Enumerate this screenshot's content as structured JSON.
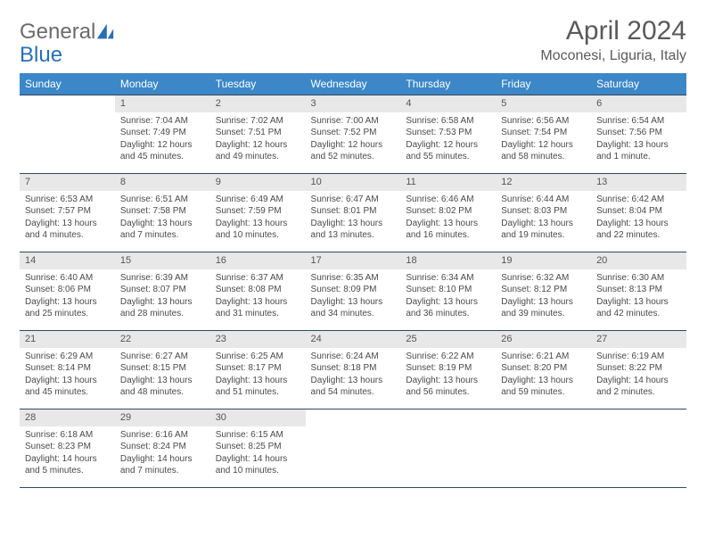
{
  "logo": {
    "part1": "General",
    "part2": "Blue"
  },
  "title": "April 2024",
  "location": "Moconesi, Liguria, Italy",
  "weekdays": [
    "Sunday",
    "Monday",
    "Tuesday",
    "Wednesday",
    "Thursday",
    "Friday",
    "Saturday"
  ],
  "colors": {
    "header_bg": "#3b87c8",
    "header_text": "#ffffff",
    "daynum_bg": "#e8e8e8",
    "border": "#34495e",
    "logo_blue": "#2a6fb5",
    "logo_gray": "#6b6b6b"
  },
  "grid": [
    [
      {
        "n": "",
        "empty": true
      },
      {
        "n": "1",
        "sr": "Sunrise: 7:04 AM",
        "ss": "Sunset: 7:49 PM",
        "dl1": "Daylight: 12 hours",
        "dl2": "and 45 minutes."
      },
      {
        "n": "2",
        "sr": "Sunrise: 7:02 AM",
        "ss": "Sunset: 7:51 PM",
        "dl1": "Daylight: 12 hours",
        "dl2": "and 49 minutes."
      },
      {
        "n": "3",
        "sr": "Sunrise: 7:00 AM",
        "ss": "Sunset: 7:52 PM",
        "dl1": "Daylight: 12 hours",
        "dl2": "and 52 minutes."
      },
      {
        "n": "4",
        "sr": "Sunrise: 6:58 AM",
        "ss": "Sunset: 7:53 PM",
        "dl1": "Daylight: 12 hours",
        "dl2": "and 55 minutes."
      },
      {
        "n": "5",
        "sr": "Sunrise: 6:56 AM",
        "ss": "Sunset: 7:54 PM",
        "dl1": "Daylight: 12 hours",
        "dl2": "and 58 minutes."
      },
      {
        "n": "6",
        "sr": "Sunrise: 6:54 AM",
        "ss": "Sunset: 7:56 PM",
        "dl1": "Daylight: 13 hours",
        "dl2": "and 1 minute."
      }
    ],
    [
      {
        "n": "7",
        "sr": "Sunrise: 6:53 AM",
        "ss": "Sunset: 7:57 PM",
        "dl1": "Daylight: 13 hours",
        "dl2": "and 4 minutes."
      },
      {
        "n": "8",
        "sr": "Sunrise: 6:51 AM",
        "ss": "Sunset: 7:58 PM",
        "dl1": "Daylight: 13 hours",
        "dl2": "and 7 minutes."
      },
      {
        "n": "9",
        "sr": "Sunrise: 6:49 AM",
        "ss": "Sunset: 7:59 PM",
        "dl1": "Daylight: 13 hours",
        "dl2": "and 10 minutes."
      },
      {
        "n": "10",
        "sr": "Sunrise: 6:47 AM",
        "ss": "Sunset: 8:01 PM",
        "dl1": "Daylight: 13 hours",
        "dl2": "and 13 minutes."
      },
      {
        "n": "11",
        "sr": "Sunrise: 6:46 AM",
        "ss": "Sunset: 8:02 PM",
        "dl1": "Daylight: 13 hours",
        "dl2": "and 16 minutes."
      },
      {
        "n": "12",
        "sr": "Sunrise: 6:44 AM",
        "ss": "Sunset: 8:03 PM",
        "dl1": "Daylight: 13 hours",
        "dl2": "and 19 minutes."
      },
      {
        "n": "13",
        "sr": "Sunrise: 6:42 AM",
        "ss": "Sunset: 8:04 PM",
        "dl1": "Daylight: 13 hours",
        "dl2": "and 22 minutes."
      }
    ],
    [
      {
        "n": "14",
        "sr": "Sunrise: 6:40 AM",
        "ss": "Sunset: 8:06 PM",
        "dl1": "Daylight: 13 hours",
        "dl2": "and 25 minutes."
      },
      {
        "n": "15",
        "sr": "Sunrise: 6:39 AM",
        "ss": "Sunset: 8:07 PM",
        "dl1": "Daylight: 13 hours",
        "dl2": "and 28 minutes."
      },
      {
        "n": "16",
        "sr": "Sunrise: 6:37 AM",
        "ss": "Sunset: 8:08 PM",
        "dl1": "Daylight: 13 hours",
        "dl2": "and 31 minutes."
      },
      {
        "n": "17",
        "sr": "Sunrise: 6:35 AM",
        "ss": "Sunset: 8:09 PM",
        "dl1": "Daylight: 13 hours",
        "dl2": "and 34 minutes."
      },
      {
        "n": "18",
        "sr": "Sunrise: 6:34 AM",
        "ss": "Sunset: 8:10 PM",
        "dl1": "Daylight: 13 hours",
        "dl2": "and 36 minutes."
      },
      {
        "n": "19",
        "sr": "Sunrise: 6:32 AM",
        "ss": "Sunset: 8:12 PM",
        "dl1": "Daylight: 13 hours",
        "dl2": "and 39 minutes."
      },
      {
        "n": "20",
        "sr": "Sunrise: 6:30 AM",
        "ss": "Sunset: 8:13 PM",
        "dl1": "Daylight: 13 hours",
        "dl2": "and 42 minutes."
      }
    ],
    [
      {
        "n": "21",
        "sr": "Sunrise: 6:29 AM",
        "ss": "Sunset: 8:14 PM",
        "dl1": "Daylight: 13 hours",
        "dl2": "and 45 minutes."
      },
      {
        "n": "22",
        "sr": "Sunrise: 6:27 AM",
        "ss": "Sunset: 8:15 PM",
        "dl1": "Daylight: 13 hours",
        "dl2": "and 48 minutes."
      },
      {
        "n": "23",
        "sr": "Sunrise: 6:25 AM",
        "ss": "Sunset: 8:17 PM",
        "dl1": "Daylight: 13 hours",
        "dl2": "and 51 minutes."
      },
      {
        "n": "24",
        "sr": "Sunrise: 6:24 AM",
        "ss": "Sunset: 8:18 PM",
        "dl1": "Daylight: 13 hours",
        "dl2": "and 54 minutes."
      },
      {
        "n": "25",
        "sr": "Sunrise: 6:22 AM",
        "ss": "Sunset: 8:19 PM",
        "dl1": "Daylight: 13 hours",
        "dl2": "and 56 minutes."
      },
      {
        "n": "26",
        "sr": "Sunrise: 6:21 AM",
        "ss": "Sunset: 8:20 PM",
        "dl1": "Daylight: 13 hours",
        "dl2": "and 59 minutes."
      },
      {
        "n": "27",
        "sr": "Sunrise: 6:19 AM",
        "ss": "Sunset: 8:22 PM",
        "dl1": "Daylight: 14 hours",
        "dl2": "and 2 minutes."
      }
    ],
    [
      {
        "n": "28",
        "sr": "Sunrise: 6:18 AM",
        "ss": "Sunset: 8:23 PM",
        "dl1": "Daylight: 14 hours",
        "dl2": "and 5 minutes."
      },
      {
        "n": "29",
        "sr": "Sunrise: 6:16 AM",
        "ss": "Sunset: 8:24 PM",
        "dl1": "Daylight: 14 hours",
        "dl2": "and 7 minutes."
      },
      {
        "n": "30",
        "sr": "Sunrise: 6:15 AM",
        "ss": "Sunset: 8:25 PM",
        "dl1": "Daylight: 14 hours",
        "dl2": "and 10 minutes."
      },
      {
        "n": "",
        "empty": true
      },
      {
        "n": "",
        "empty": true
      },
      {
        "n": "",
        "empty": true
      },
      {
        "n": "",
        "empty": true
      }
    ]
  ]
}
